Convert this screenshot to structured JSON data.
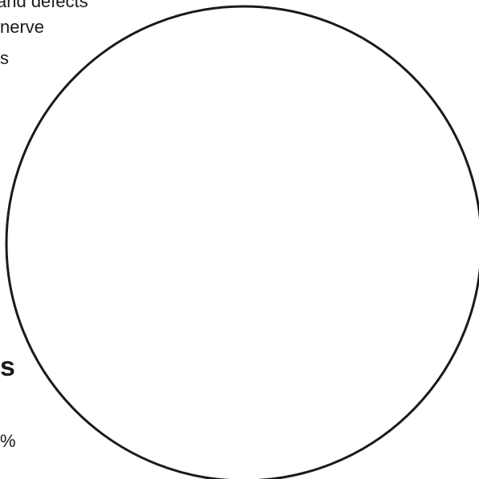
{
  "text_fragments": [
    "and defects",
    "nerve",
    "s",
    "s",
    "%"
  ],
  "circle": {
    "stroke_color": "#1a1a1a",
    "fill_color": "#ffffff"
  }
}
